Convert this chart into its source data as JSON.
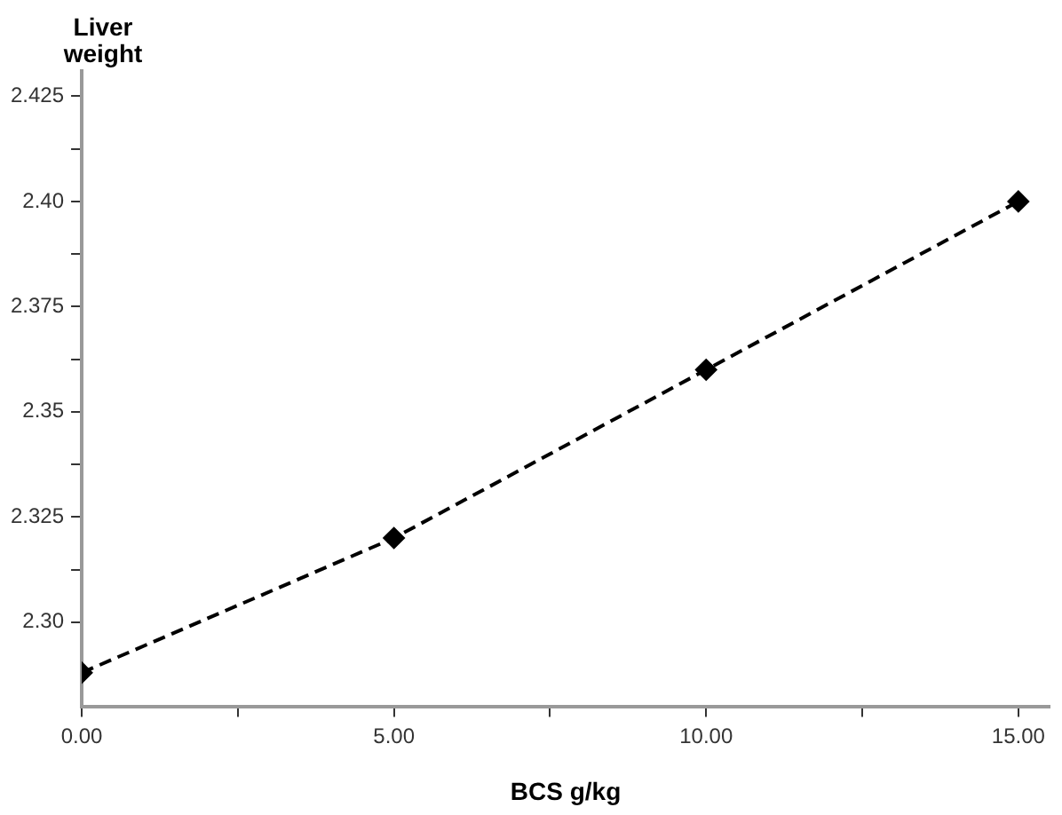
{
  "chart_data": {
    "type": "line",
    "xlabel": "BCS g/kg",
    "ylabel": "Liver weight",
    "x": [
      0,
      5,
      10,
      15
    ],
    "series": [
      {
        "color": "#000000",
        "values": [
          2.288,
          2.32,
          2.36,
          2.4
        ]
      }
    ],
    "xlim": [
      0,
      15.5
    ],
    "xticks": [
      {
        "value": 0,
        "label": "0.00"
      },
      {
        "value": 2.5,
        "label": null
      },
      {
        "value": 5,
        "label": "5.00"
      },
      {
        "value": 7.5,
        "label": null
      },
      {
        "value": 10,
        "label": "10.00"
      },
      {
        "value": 12.5,
        "label": null
      },
      {
        "value": 15,
        "label": "15.00"
      }
    ],
    "ylim": [
      2.28,
      2.431
    ],
    "yticks": [
      {
        "value": 2.3,
        "label": "2.30"
      },
      {
        "value": 2.3125,
        "label": null
      },
      {
        "value": 2.325,
        "label": "2.325"
      },
      {
        "value": 2.3375,
        "label": null
      },
      {
        "value": 2.35,
        "label": "2.35"
      },
      {
        "value": 2.3625,
        "label": null
      },
      {
        "value": 2.375,
        "label": "2.375"
      },
      {
        "value": 2.3875,
        "label": null
      },
      {
        "value": 2.4,
        "label": "2.40"
      },
      {
        "value": 2.4125,
        "label": null
      },
      {
        "value": 2.425,
        "label": "2.425"
      }
    ],
    "grid": false,
    "legend": false,
    "marker": "diamond",
    "line_style": "dashed"
  }
}
